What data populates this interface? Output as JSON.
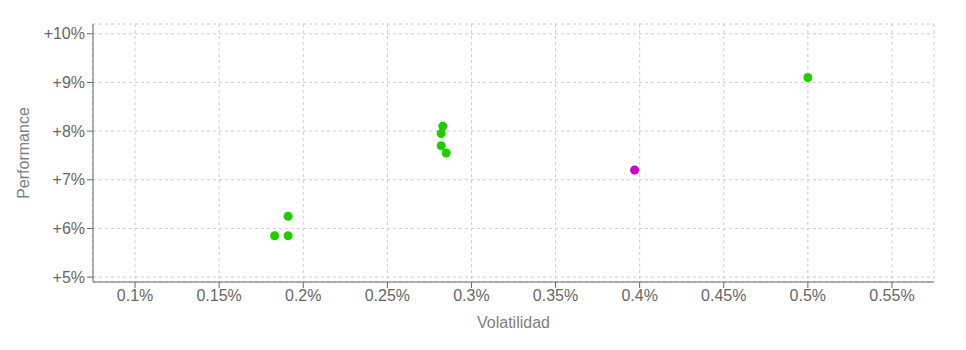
{
  "chart_data": {
    "type": "scatter",
    "xlabel": "Volatilidad",
    "ylabel": "Performance",
    "xlim": [
      0.075,
      0.575
    ],
    "ylim": [
      0.049,
      0.102
    ],
    "xticks": [
      {
        "value": 0.1,
        "label": "0.1%"
      },
      {
        "value": 0.15,
        "label": "0.15%"
      },
      {
        "value": 0.2,
        "label": "0.2%"
      },
      {
        "value": 0.25,
        "label": "0.25%"
      },
      {
        "value": 0.3,
        "label": "0.3%"
      },
      {
        "value": 0.35,
        "label": "0.35%"
      },
      {
        "value": 0.4,
        "label": "0.4%"
      },
      {
        "value": 0.45,
        "label": "0.45%"
      },
      {
        "value": 0.5,
        "label": "0.5%"
      },
      {
        "value": 0.55,
        "label": "0.55%"
      }
    ],
    "yticks": [
      {
        "value": 0.05,
        "label": "+5%"
      },
      {
        "value": 0.06,
        "label": "+6%"
      },
      {
        "value": 0.07,
        "label": "+7%"
      },
      {
        "value": 0.08,
        "label": "+8%"
      },
      {
        "value": 0.09,
        "label": "+9%"
      },
      {
        "value": 0.1,
        "label": "+10%"
      }
    ],
    "grid": true,
    "series": [
      {
        "color": "#22cc00",
        "x": [
          0.183,
          0.191,
          0.191,
          0.282,
          0.285,
          0.282,
          0.283,
          0.5
        ],
        "values": [
          0.0585,
          0.0585,
          0.0625,
          0.077,
          0.0755,
          0.0795,
          0.081,
          0.091
        ]
      },
      {
        "color": "#cc00cc",
        "x": [
          0.397
        ],
        "values": [
          0.072
        ]
      }
    ]
  }
}
